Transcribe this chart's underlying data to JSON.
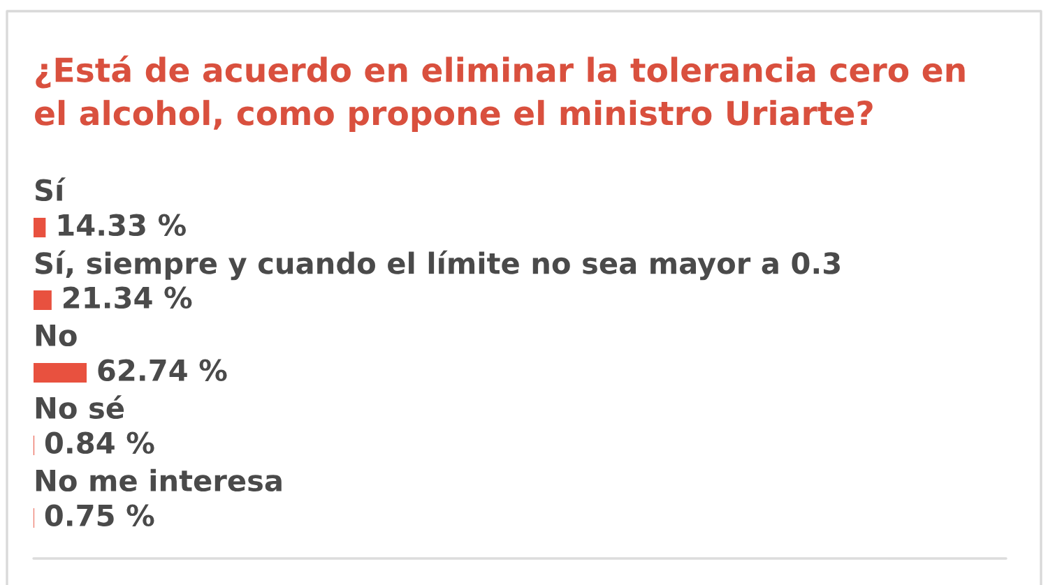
{
  "chart_data": {
    "type": "bar",
    "orientation": "horizontal",
    "title": "¿Está de acuerdo en eliminar la tolerancia cero en el alcohol, como propone el ministro Uriarte?",
    "categories": [
      "Sí",
      "Sí, siempre y cuando el límite no sea mayor a 0.3",
      "No",
      "No sé",
      "No me interesa"
    ],
    "values": [
      14.33,
      21.34,
      62.74,
      0.84,
      0.75
    ],
    "value_labels": [
      "14.33 %",
      "21.34 %",
      "62.74 %",
      "0.84 %",
      "0.75 %"
    ],
    "color": "#e8513f"
  }
}
